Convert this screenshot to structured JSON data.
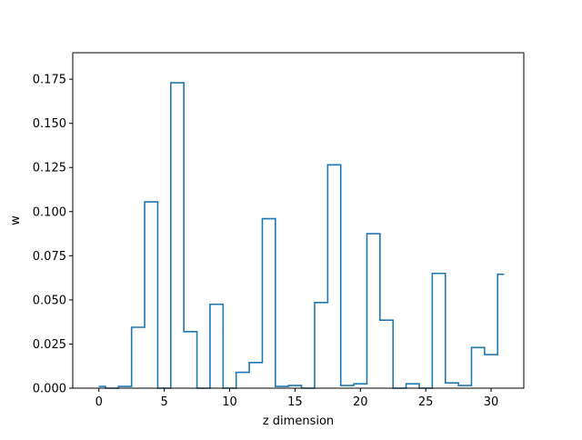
{
  "chart_data": {
    "type": "step",
    "xlabel": "z dimension",
    "ylabel": "w",
    "xlim": [
      -2,
      32.5
    ],
    "ylim": [
      0,
      0.19
    ],
    "x_ticks": [
      0,
      5,
      10,
      15,
      20,
      25,
      30
    ],
    "y_ticks": [
      0.0,
      0.025,
      0.05,
      0.075,
      0.1,
      0.125,
      0.15,
      0.175
    ],
    "y_tick_labels": [
      "0.000",
      "0.025",
      "0.050",
      "0.075",
      "0.100",
      "0.125",
      "0.150",
      "0.175"
    ],
    "x": [
      0,
      1,
      2,
      3,
      4,
      5,
      6,
      7,
      8,
      9,
      10,
      11,
      12,
      13,
      14,
      15,
      16,
      17,
      18,
      19,
      20,
      21,
      22,
      23,
      24,
      25,
      26,
      27,
      28,
      29,
      30,
      31
    ],
    "values": [
      0.001,
      0.0,
      0.001,
      0.0345,
      0.1055,
      0.0,
      0.173,
      0.032,
      0.0,
      0.0475,
      0.0,
      0.009,
      0.0145,
      0.096,
      0.001,
      0.0015,
      0.0,
      0.0485,
      0.1265,
      0.0015,
      0.0025,
      0.0875,
      0.0385,
      0.0,
      0.0025,
      0.0,
      0.065,
      0.003,
      0.0015,
      0.023,
      0.019,
      0.0645
    ],
    "line_color": "#1f77b4",
    "grid": false
  }
}
